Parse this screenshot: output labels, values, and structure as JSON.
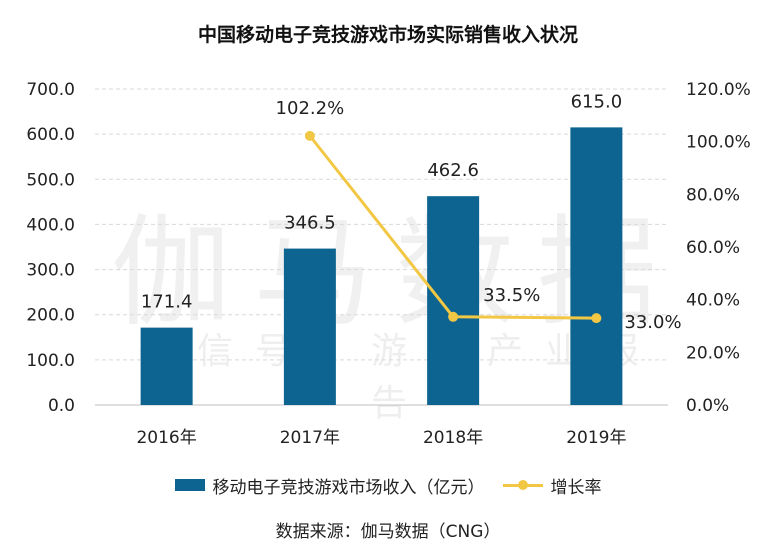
{
  "title": "中国移动电子竞技游戏市场实际销售收入状况",
  "source": "数据来源：伽马数据（CNG）",
  "watermark": {
    "main": "伽马数据",
    "sub": "微信号：游戏产业报告"
  },
  "colors": {
    "bar": "#0e6490",
    "line": "#f2c744",
    "grid": "#d9d9d9"
  },
  "chart_data": {
    "type": "bar",
    "categories": [
      "2016年",
      "2017年",
      "2018年",
      "2019年"
    ],
    "series": [
      {
        "name": "移动电子竞技游戏市场收入（亿元）",
        "type": "bar",
        "values": [
          171.4,
          346.5,
          462.6,
          615.0
        ],
        "labels": [
          "171.4",
          "346.5",
          "462.6",
          "615.0"
        ]
      },
      {
        "name": "增长率",
        "type": "line",
        "axis": "right",
        "values": [
          null,
          102.2,
          33.5,
          33.0
        ],
        "labels": [
          "",
          "102.2%",
          "33.5%",
          "33.0%"
        ]
      }
    ],
    "y_left": {
      "ylim": [
        0,
        700
      ],
      "ticks": [
        "0.0",
        "100.0",
        "200.0",
        "300.0",
        "400.0",
        "500.0",
        "600.0",
        "700.0"
      ]
    },
    "y_right": {
      "ylim": [
        0,
        120
      ],
      "ticks": [
        "0.0%",
        "20.0%",
        "40.0%",
        "60.0%",
        "80.0%",
        "100.0%",
        "120.0%"
      ]
    },
    "grid": true,
    "legend": "bottom"
  }
}
